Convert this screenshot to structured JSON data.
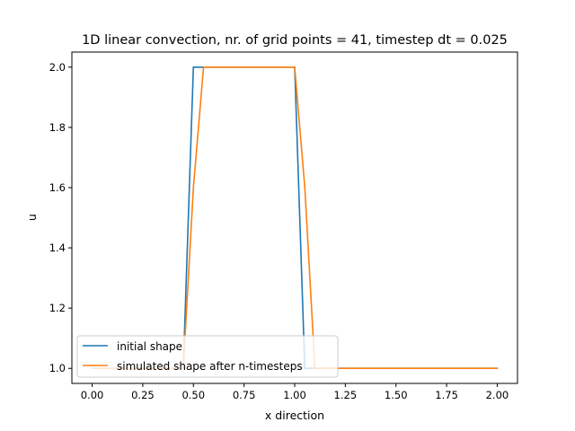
{
  "chart_data": {
    "type": "line",
    "title": "1D linear convection, nr. of grid points = 41, timestep dt = 0.025",
    "xlabel": "x direction",
    "ylabel": "u",
    "xlim": [
      -0.1,
      2.1
    ],
    "ylim": [
      0.95,
      2.05
    ],
    "xticks": [
      "0.00",
      "0.25",
      "0.50",
      "0.75",
      "1.00",
      "1.25",
      "1.50",
      "1.75",
      "2.00"
    ],
    "yticks": [
      "1.0",
      "1.2",
      "1.4",
      "1.6",
      "1.8",
      "2.0"
    ],
    "grid": false,
    "legend_position": "lower-left",
    "series": [
      {
        "name": "initial shape",
        "color": "#1f77b4",
        "x": [
          0.0,
          0.45,
          0.5,
          1.0,
          1.05,
          2.0
        ],
        "y": [
          1.0,
          1.0,
          2.0,
          2.0,
          1.0,
          1.0
        ]
      },
      {
        "name": "simulated shape after n-timesteps",
        "color": "#ff7f0e",
        "x": [
          0.0,
          0.45,
          0.5,
          0.55,
          1.0,
          1.05,
          1.1,
          2.0
        ],
        "y": [
          1.0,
          1.0,
          1.6,
          2.0,
          2.0,
          1.6,
          1.0,
          1.0
        ]
      }
    ]
  }
}
